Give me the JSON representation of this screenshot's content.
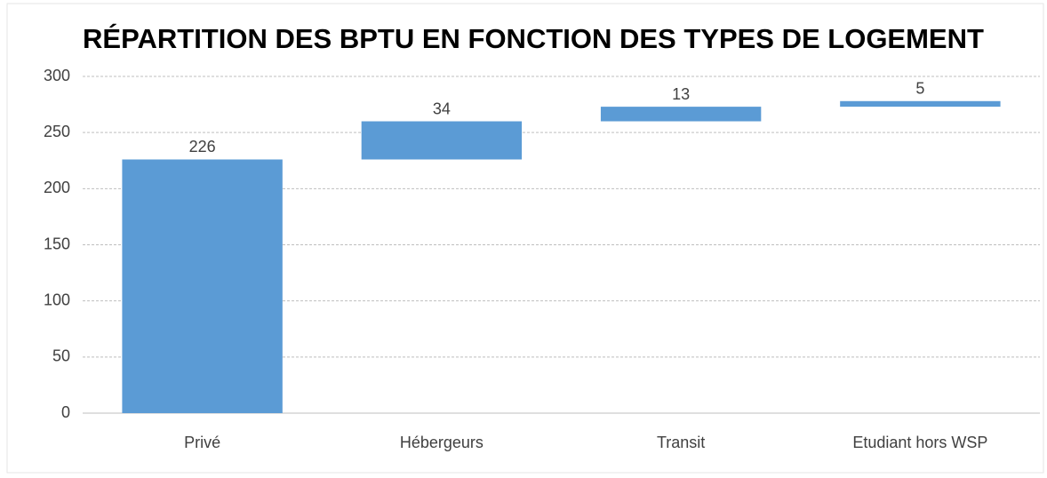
{
  "chart_data": {
    "type": "waterfall",
    "title": "RÉPARTITION DES BPTU EN FONCTION DES TYPES DE LOGEMENT",
    "categories": [
      "Privé",
      "Hébergeurs",
      "Transit",
      "Etudiant hors WSP"
    ],
    "values": [
      226,
      34,
      13,
      5
    ],
    "color": "#5b9bd5",
    "ylim": [
      0,
      300
    ],
    "yticks": [
      0,
      50,
      100,
      150,
      200,
      250,
      300
    ],
    "grid": true
  }
}
